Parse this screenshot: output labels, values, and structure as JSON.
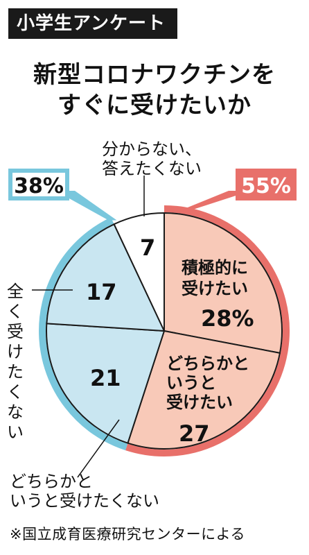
{
  "header": {
    "tag": "小学生アンケート"
  },
  "title": {
    "line1": "新型コロナワクチンを",
    "line2": "すぐに受けたいか"
  },
  "chart_data": {
    "type": "pie",
    "categories": [
      "積極的に受けたい",
      "どちらかというと受けたい",
      "どちらかというと受けたくない",
      "全く受けたくない",
      "分からない、答えたくない"
    ],
    "values": [
      28,
      27,
      21,
      17,
      7
    ],
    "labels": {
      "slice1": [
        "積極的に",
        "受けたい",
        "28%"
      ],
      "slice2": [
        "どちらかと",
        "いうと",
        "受けたい",
        "27"
      ],
      "slice3_value": "21",
      "slice3_label": [
        "どちらかと",
        "いうと受けたくない"
      ],
      "slice4_value": "17",
      "slice4_label": [
        "全",
        "く",
        "受",
        "け",
        "た",
        "く",
        "な",
        "い"
      ],
      "slice5_value": "7",
      "slice5_label": [
        "分からない、",
        "答えたくない"
      ]
    },
    "groups": [
      {
        "label": "55%",
        "members": [
          "積極的に受けたい",
          "どちらかというと受けたい"
        ],
        "color": "#e8706a"
      },
      {
        "label": "38%",
        "members": [
          "どちらかというと受けたくない",
          "全く受けたくない"
        ],
        "color": "#79c7dd"
      }
    ],
    "colors": {
      "positive": "#f8c9b8",
      "negative": "#c9e6f1",
      "neutral": "#ffffff",
      "outline": "#1a1a1a"
    }
  },
  "source": "※国立成育医療研究センターによる"
}
